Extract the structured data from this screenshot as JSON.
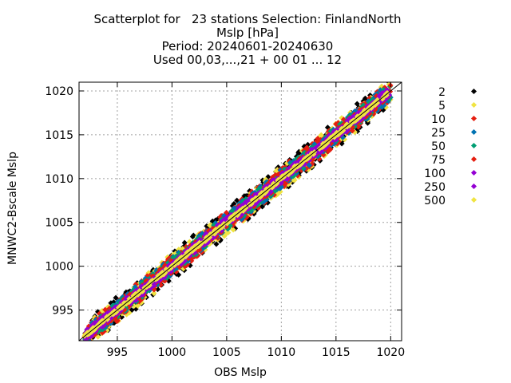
{
  "chart_data": {
    "type": "scatter",
    "title_lines": [
      "Scatterplot for   23 stations Selection: FinlandNorth",
      "Mslp [hPa]",
      "Period: 20240601-20240630",
      "Used 00,03,...,21 + 00 01 ... 12"
    ],
    "xlabel": "OBS Mslp",
    "ylabel": "MNWC2-Bscale Mslp",
    "xlim": [
      991.5,
      1021.0
    ],
    "ylim": [
      991.5,
      1021.0
    ],
    "xticks": [
      "995",
      "1000",
      "1005",
      "1010",
      "1015",
      "1020"
    ],
    "yticks": [
      "995",
      "1000",
      "1005",
      "1010",
      "1015",
      "1020"
    ],
    "grid": true,
    "diagonal_line": true,
    "legend_position": "right",
    "series": [
      {
        "name": "2",
        "color": "#000000",
        "halfwidth": 1.6
      },
      {
        "name": "5",
        "color": "#f0e442",
        "halfwidth": 1.45
      },
      {
        "name": "10",
        "color": "#e51e10",
        "halfwidth": 1.25
      },
      {
        "name": "25",
        "color": "#0072b2",
        "halfwidth": 1.05
      },
      {
        "name": "50",
        "color": "#009e73",
        "halfwidth": 0.9
      },
      {
        "name": "75",
        "color": "#e51e10",
        "halfwidth": 0.75
      },
      {
        "name": "100",
        "color": "#9400d3",
        "halfwidth": 0.6
      },
      {
        "name": "250",
        "color": "#9400d3",
        "halfwidth": 0.4
      },
      {
        "name": "500",
        "color": "#f0e442",
        "halfwidth": 0.2
      }
    ]
  }
}
